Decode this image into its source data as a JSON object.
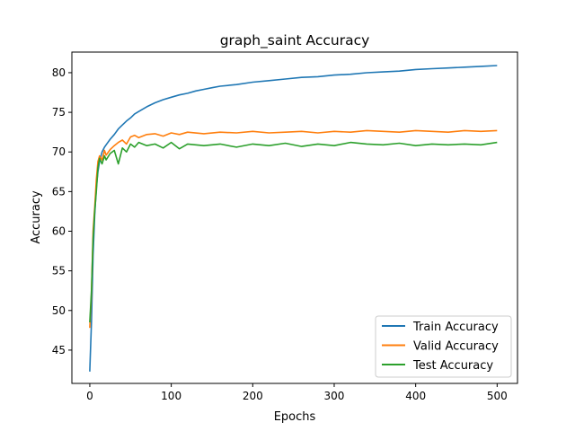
{
  "chart_data": {
    "type": "line",
    "title": "graph_saint Accuracy",
    "xlabel": "Epochs",
    "ylabel": "Accuracy",
    "xlim": [
      -22,
      525
    ],
    "ylim": [
      40.8,
      82.6
    ],
    "xticks": [
      0,
      100,
      200,
      300,
      400,
      500
    ],
    "yticks": [
      45,
      50,
      55,
      60,
      65,
      70,
      75,
      80
    ],
    "grid": false,
    "legend_position": "lower right",
    "series": [
      {
        "name": "Train Accuracy",
        "color": "#1f77b4",
        "points": [
          [
            0,
            42.3
          ],
          [
            2,
            48.5
          ],
          [
            4,
            57.0
          ],
          [
            6,
            62.0
          ],
          [
            8,
            65.5
          ],
          [
            10,
            67.5
          ],
          [
            12,
            68.8
          ],
          [
            15,
            70.0
          ],
          [
            18,
            70.6
          ],
          [
            20,
            70.9
          ],
          [
            25,
            71.6
          ],
          [
            30,
            72.2
          ],
          [
            35,
            72.9
          ],
          [
            40,
            73.4
          ],
          [
            45,
            73.9
          ],
          [
            50,
            74.3
          ],
          [
            55,
            74.8
          ],
          [
            60,
            75.1
          ],
          [
            70,
            75.7
          ],
          [
            80,
            76.2
          ],
          [
            90,
            76.6
          ],
          [
            100,
            76.9
          ],
          [
            110,
            77.2
          ],
          [
            120,
            77.4
          ],
          [
            130,
            77.7
          ],
          [
            140,
            77.9
          ],
          [
            150,
            78.1
          ],
          [
            160,
            78.3
          ],
          [
            180,
            78.5
          ],
          [
            200,
            78.8
          ],
          [
            220,
            79.0
          ],
          [
            240,
            79.2
          ],
          [
            260,
            79.4
          ],
          [
            280,
            79.5
          ],
          [
            300,
            79.7
          ],
          [
            320,
            79.8
          ],
          [
            340,
            80.0
          ],
          [
            360,
            80.1
          ],
          [
            380,
            80.2
          ],
          [
            400,
            80.4
          ],
          [
            420,
            80.5
          ],
          [
            440,
            80.6
          ],
          [
            460,
            80.7
          ],
          [
            480,
            80.8
          ],
          [
            500,
            80.9
          ]
        ]
      },
      {
        "name": "Valid Accuracy",
        "color": "#ff7f0e",
        "points": [
          [
            0,
            47.8
          ],
          [
            2,
            52.0
          ],
          [
            4,
            60.0
          ],
          [
            6,
            63.0
          ],
          [
            8,
            66.5
          ],
          [
            10,
            68.8
          ],
          [
            12,
            69.5
          ],
          [
            15,
            69.0
          ],
          [
            18,
            70.2
          ],
          [
            20,
            69.6
          ],
          [
            25,
            70.3
          ],
          [
            30,
            70.8
          ],
          [
            35,
            71.2
          ],
          [
            40,
            71.5
          ],
          [
            45,
            71.0
          ],
          [
            50,
            71.9
          ],
          [
            55,
            72.1
          ],
          [
            60,
            71.8
          ],
          [
            70,
            72.2
          ],
          [
            80,
            72.3
          ],
          [
            90,
            72.0
          ],
          [
            100,
            72.4
          ],
          [
            110,
            72.2
          ],
          [
            120,
            72.5
          ],
          [
            140,
            72.3
          ],
          [
            160,
            72.5
          ],
          [
            180,
            72.4
          ],
          [
            200,
            72.6
          ],
          [
            220,
            72.4
          ],
          [
            240,
            72.5
          ],
          [
            260,
            72.6
          ],
          [
            280,
            72.4
          ],
          [
            300,
            72.6
          ],
          [
            320,
            72.5
          ],
          [
            340,
            72.7
          ],
          [
            360,
            72.6
          ],
          [
            380,
            72.5
          ],
          [
            400,
            72.7
          ],
          [
            420,
            72.6
          ],
          [
            440,
            72.5
          ],
          [
            460,
            72.7
          ],
          [
            480,
            72.6
          ],
          [
            500,
            72.7
          ]
        ]
      },
      {
        "name": "Test Accuracy",
        "color": "#2ca02c",
        "points": [
          [
            0,
            48.5
          ],
          [
            2,
            52.5
          ],
          [
            4,
            59.0
          ],
          [
            6,
            62.5
          ],
          [
            8,
            65.0
          ],
          [
            10,
            68.0
          ],
          [
            12,
            69.2
          ],
          [
            15,
            68.5
          ],
          [
            18,
            69.5
          ],
          [
            20,
            69.0
          ],
          [
            25,
            69.8
          ],
          [
            30,
            70.2
          ],
          [
            35,
            68.5
          ],
          [
            40,
            70.5
          ],
          [
            45,
            70.0
          ],
          [
            50,
            71.0
          ],
          [
            55,
            70.6
          ],
          [
            60,
            71.2
          ],
          [
            70,
            70.8
          ],
          [
            80,
            71.0
          ],
          [
            90,
            70.5
          ],
          [
            100,
            71.2
          ],
          [
            110,
            70.4
          ],
          [
            120,
            71.0
          ],
          [
            140,
            70.8
          ],
          [
            160,
            71.0
          ],
          [
            180,
            70.6
          ],
          [
            200,
            71.0
          ],
          [
            220,
            70.8
          ],
          [
            240,
            71.1
          ],
          [
            260,
            70.7
          ],
          [
            280,
            71.0
          ],
          [
            300,
            70.8
          ],
          [
            320,
            71.2
          ],
          [
            340,
            71.0
          ],
          [
            360,
            70.9
          ],
          [
            380,
            71.1
          ],
          [
            400,
            70.8
          ],
          [
            420,
            71.0
          ],
          [
            440,
            70.9
          ],
          [
            460,
            71.0
          ],
          [
            480,
            70.9
          ],
          [
            500,
            71.2
          ]
        ]
      }
    ]
  }
}
